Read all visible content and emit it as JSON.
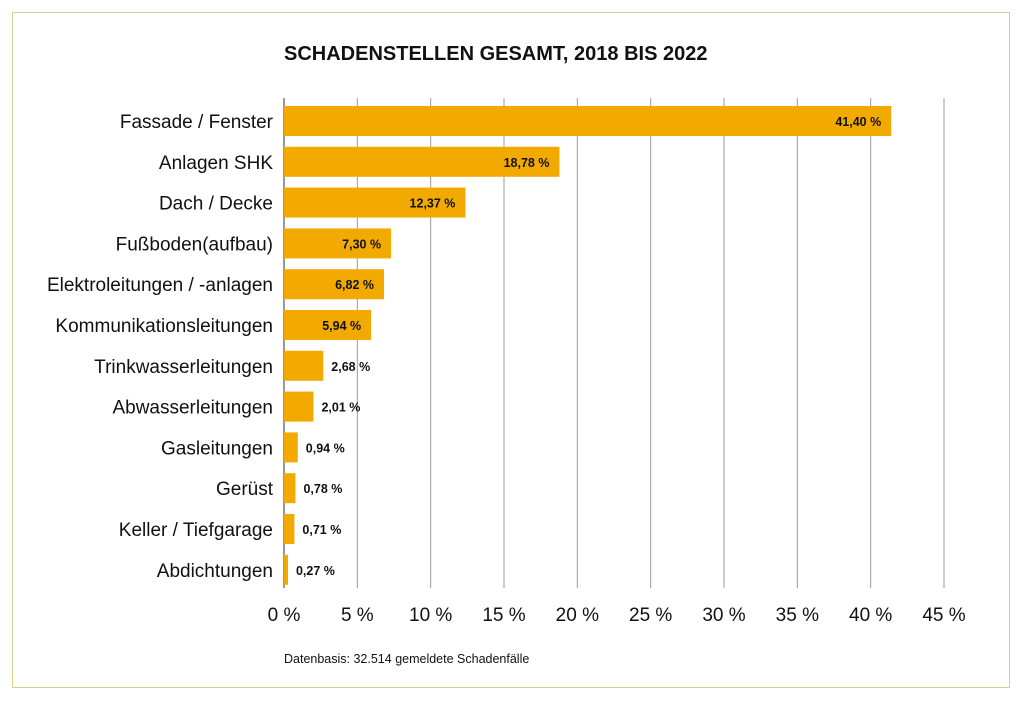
{
  "chart_data": {
    "type": "bar",
    "orientation": "horizontal",
    "title": "SCHADENSTELLEN GESAMT, 2018 BIS 2022",
    "categories": [
      "Fassade / Fenster",
      "Anlagen SHK",
      "Dach / Decke",
      "Fußboden(aufbau)",
      "Elektroleitungen / -anlagen",
      "Kommunikationsleitungen",
      "Trinkwasserleitungen",
      "Abwasserleitungen",
      "Gasleitungen",
      "Gerüst",
      "Keller / Tiefgarage",
      "Abdichtungen"
    ],
    "values": [
      41.4,
      18.78,
      12.37,
      7.3,
      6.82,
      5.94,
      2.68,
      2.01,
      0.94,
      0.78,
      0.71,
      0.27
    ],
    "value_labels": [
      "41,40 %",
      "18,78 %",
      "12,37 %",
      "7,30 %",
      "6,82 %",
      "5,94 %",
      "2,68 %",
      "2,01 %",
      "0,94 %",
      "0,78 %",
      "0,71 %",
      "0,27 %"
    ],
    "xlim": [
      0,
      45
    ],
    "xticks": [
      0,
      5,
      10,
      15,
      20,
      25,
      30,
      35,
      40,
      45
    ],
    "xtick_labels": [
      "0 %",
      "5 %",
      "10 %",
      "15 %",
      "20 %",
      "25 %",
      "30 %",
      "35 %",
      "40 %",
      "45 %"
    ],
    "grid": "vertical",
    "bar_color": "#f2a900",
    "frame_color": "#d9cf8c",
    "note": "Datenbasis: 32.514 gemeldete Schadenfälle"
  }
}
